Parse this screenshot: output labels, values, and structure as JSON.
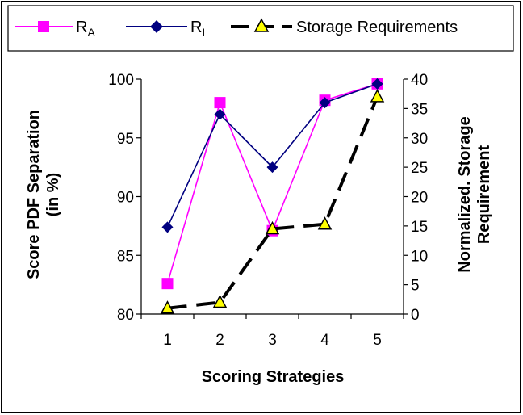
{
  "chart_data": {
    "type": "line",
    "x": [
      1,
      2,
      3,
      4,
      5
    ],
    "xlabel": "Scoring Strategies",
    "ylabel_left": [
      "Score PDF Separation",
      "(in %)"
    ],
    "ylabel_right": [
      "Normalized. Storage",
      "Requirement"
    ],
    "ylim_left": [
      80,
      100
    ],
    "ylim_right": [
      0,
      40
    ],
    "yticks_left": [
      80,
      85,
      90,
      95,
      100
    ],
    "yticks_right": [
      0,
      5,
      10,
      15,
      20,
      25,
      30,
      35,
      40
    ],
    "legend_position": "top",
    "series": [
      {
        "name": "R",
        "name_sub": "A",
        "axis": "left",
        "color": "#ff00ff",
        "marker": "square",
        "values": [
          82.6,
          98.0,
          87.1,
          98.2,
          99.6
        ]
      },
      {
        "name": "R",
        "name_sub": "L",
        "axis": "left",
        "color": "#000080",
        "marker": "diamond",
        "values": [
          87.4,
          97.0,
          92.5,
          98.0,
          99.6
        ]
      },
      {
        "name": "Storage Requirements",
        "axis": "right",
        "color": "#000000",
        "marker": "triangle",
        "marker_fill": "#ffff00",
        "dashed": true,
        "values": [
          1.0,
          2.0,
          14.5,
          15.3,
          37.0
        ]
      }
    ]
  }
}
